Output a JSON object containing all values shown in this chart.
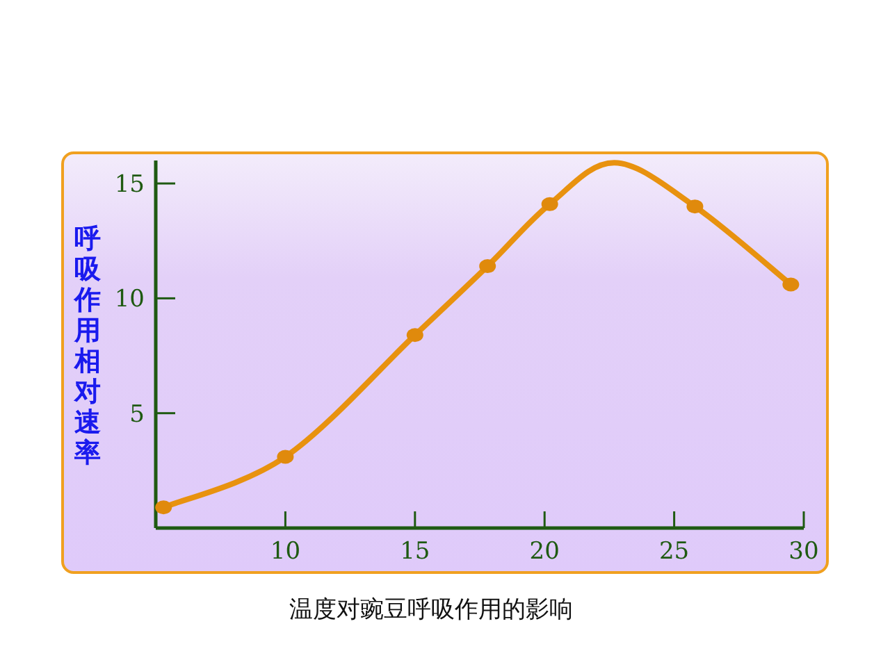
{
  "chart_data": {
    "type": "line",
    "title": "温度对豌豆呼吸作用的影响",
    "ylabel": "呼吸作用相对速率",
    "xlim": [
      5,
      30
    ],
    "ylim": [
      0,
      16
    ],
    "xticks": [
      10,
      15,
      20,
      25,
      30
    ],
    "yticks": [
      5,
      10,
      15
    ],
    "grid": false,
    "series": [
      {
        "color": "#e8920f",
        "marker": "none",
        "x": [
          5.3,
          10,
          15,
          17.8,
          20.2,
          22.7,
          25.8,
          29.5
        ],
        "values": [
          0.9,
          3.1,
          8.4,
          11.4,
          14.1,
          15.9,
          14.0,
          10.6
        ]
      },
      {
        "type": "scatter",
        "color": "#e08a0c",
        "marker": "circle",
        "x": [
          5.3,
          10,
          15,
          17.8,
          20.2,
          25.8,
          29.5
        ],
        "values": [
          0.9,
          3.1,
          8.4,
          11.4,
          14.1,
          14.0,
          10.6
        ]
      }
    ]
  }
}
